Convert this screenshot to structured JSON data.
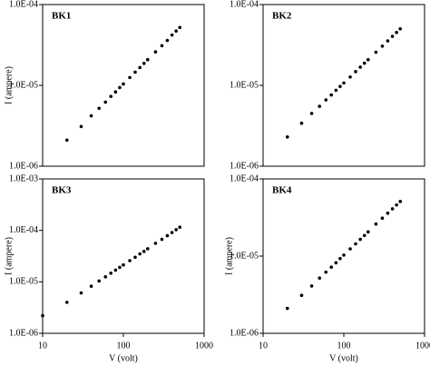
{
  "chart_data": [
    {
      "type": "scatter",
      "title": "BK1",
      "ylabel": "I (ampere)",
      "xscale": "log",
      "yscale": "log",
      "color": "#000000",
      "xlim": [
        10,
        1000
      ],
      "ylim": [
        1e-06,
        0.0001
      ],
      "yticks": [
        {
          "value": 1e-06,
          "label": "1.0E-06"
        },
        {
          "value": 1e-05,
          "label": "1.0E-05"
        },
        {
          "value": 0.0001,
          "label": "1.0E-04"
        }
      ],
      "x": [
        20,
        30,
        40,
        50,
        60,
        70,
        80,
        90,
        100,
        120,
        140,
        160,
        180,
        200,
        250,
        300,
        350,
        400,
        450,
        500
      ],
      "values": [
        2.1e-06,
        3.1e-06,
        4.2e-06,
        5.2e-06,
        6.2e-06,
        7.3e-06,
        8.3e-06,
        9.4e-06,
        1.04e-05,
        1.25e-05,
        1.46e-05,
        1.66e-05,
        1.87e-05,
        2.08e-05,
        2.6e-05,
        3.1e-05,
        3.6e-05,
        4.2e-05,
        4.7e-05,
        5.2e-05
      ]
    },
    {
      "type": "scatter",
      "title": "BK2",
      "xscale": "log",
      "yscale": "log",
      "color": "#000000",
      "xlim": [
        10,
        1000
      ],
      "ylim": [
        1e-06,
        0.0001
      ],
      "yticks": [
        {
          "value": 1e-06,
          "label": "1.0E-06"
        },
        {
          "value": 1e-05,
          "label": "1.0E-05"
        },
        {
          "value": 0.0001,
          "label": "1.0E-04"
        }
      ],
      "x": [
        20,
        30,
        40,
        50,
        60,
        70,
        80,
        90,
        100,
        120,
        140,
        160,
        180,
        200,
        250,
        300,
        350,
        400,
        450,
        500
      ],
      "values": [
        2.3e-06,
        3.4e-06,
        4.5e-06,
        5.5e-06,
        6.6e-06,
        7.6e-06,
        8.7e-06,
        9.7e-06,
        1.07e-05,
        1.27e-05,
        1.48e-05,
        1.68e-05,
        1.88e-05,
        2.08e-05,
        2.57e-05,
        3.06e-05,
        3.55e-05,
        4.04e-05,
        4.52e-05,
        5e-05
      ]
    },
    {
      "type": "scatter",
      "title": "BK3",
      "ylabel": "I (ampere)",
      "xlabel": "V (volt)",
      "xscale": "log",
      "yscale": "log",
      "color": "#000000",
      "xlim": [
        10,
        1000
      ],
      "ylim": [
        1e-06,
        0.001
      ],
      "xticks": [
        10,
        100,
        1000
      ],
      "yticks": [
        {
          "value": 1e-06,
          "label": "1.0E-06"
        },
        {
          "value": 1e-05,
          "label": "1.0E-05"
        },
        {
          "value": 0.0001,
          "label": "1.0E-04"
        },
        {
          "value": 0.001,
          "label": "1.0E-03"
        }
      ],
      "x": [
        10,
        20,
        30,
        40,
        50,
        60,
        70,
        80,
        90,
        100,
        120,
        140,
        160,
        180,
        200,
        250,
        300,
        350,
        400,
        450,
        500
      ],
      "values": [
        2.2e-06,
        4e-06,
        6.1e-06,
        8.2e-06,
        1.04e-05,
        1.25e-05,
        1.47e-05,
        1.69e-05,
        1.91e-05,
        2.13e-05,
        2.58e-05,
        3e-05,
        3.5e-05,
        3.9e-05,
        4.4e-05,
        5.6e-05,
        6.7e-05,
        7.9e-05,
        9.1e-05,
        0.000103,
        0.000115
      ]
    },
    {
      "type": "scatter",
      "title": "BK4",
      "ylabel": "I (ampere)",
      "xlabel": "V (volt)",
      "xscale": "log",
      "yscale": "log",
      "color": "#000000",
      "xlim": [
        10,
        1000
      ],
      "ylim": [
        1e-06,
        0.0001
      ],
      "xticks": [
        10,
        100,
        1000
      ],
      "yticks": [
        {
          "value": 1e-06,
          "label": "1.0E-06"
        },
        {
          "value": 1e-05,
          "label": "1.0E-05"
        },
        {
          "value": 0.0001,
          "label": "1.0E-04"
        }
      ],
      "x": [
        20,
        30,
        40,
        50,
        60,
        70,
        80,
        90,
        100,
        120,
        140,
        160,
        180,
        200,
        250,
        300,
        350,
        400,
        450,
        500
      ],
      "values": [
        2.1e-06,
        3.1e-06,
        4.1e-06,
        5.2e-06,
        6.2e-06,
        7.2e-06,
        8.2e-06,
        9.3e-06,
        1.03e-05,
        1.24e-05,
        1.44e-05,
        1.65e-05,
        1.85e-05,
        2.06e-05,
        2.6e-05,
        3.1e-05,
        3.6e-05,
        4.1e-05,
        4.6e-05,
        5.1e-05
      ]
    }
  ]
}
